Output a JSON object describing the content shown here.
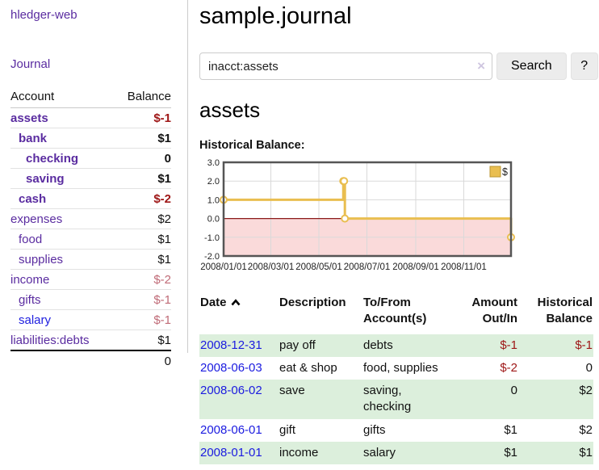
{
  "app": {
    "title": "hledger-web"
  },
  "sidebar": {
    "journal_link": "Journal",
    "accounts_table": {
      "headers": {
        "account": "Account",
        "balance": "Balance"
      },
      "rows": [
        {
          "name": "assets",
          "balance": "$-1",
          "level": 1,
          "bold": true,
          "name_color": "purple",
          "balance_style": "neg"
        },
        {
          "name": "bank",
          "balance": "$1",
          "level": 2,
          "bold": true,
          "name_color": "purple",
          "balance_style": "pos"
        },
        {
          "name": "checking",
          "balance": "0",
          "level": 3,
          "bold": true,
          "name_color": "purple",
          "balance_style": "pos"
        },
        {
          "name": "saving",
          "balance": "$1",
          "level": 3,
          "bold": true,
          "name_color": "purple",
          "balance_style": "pos"
        },
        {
          "name": "cash",
          "balance": "$-2",
          "level": 2,
          "bold": true,
          "name_color": "purple",
          "balance_style": "neg"
        },
        {
          "name": "expenses",
          "balance": "$2",
          "level": 1,
          "bold": false,
          "name_color": "purple",
          "balance_style": "pos"
        },
        {
          "name": "food",
          "balance": "$1",
          "level": 2,
          "bold": false,
          "name_color": "purple",
          "balance_style": "pos"
        },
        {
          "name": "supplies",
          "balance": "$1",
          "level": 2,
          "bold": false,
          "name_color": "purple",
          "balance_style": "pos"
        },
        {
          "name": "income",
          "balance": "$-2",
          "level": 1,
          "bold": false,
          "name_color": "purple",
          "balance_style": "negmuted"
        },
        {
          "name": "gifts",
          "balance": "$-1",
          "level": 2,
          "bold": false,
          "name_color": "purple",
          "balance_style": "negmuted"
        },
        {
          "name": "salary",
          "balance": "$-1",
          "level": 2,
          "bold": false,
          "name_color": "blue",
          "balance_style": "negmuted"
        },
        {
          "name": "liabilities:debts",
          "balance": "$1",
          "level": 1,
          "bold": false,
          "name_color": "purple",
          "balance_style": "pos"
        }
      ],
      "total": "0"
    }
  },
  "header": {
    "title": "sample.journal"
  },
  "search": {
    "value": "inacct:assets",
    "clear_icon": "×",
    "button_label": "Search",
    "help_label": "?"
  },
  "main": {
    "account_title": "assets",
    "chart_label": "Historical Balance:"
  },
  "chart_data": {
    "type": "line",
    "line_style": "step",
    "title": "Historical Balance",
    "legend": {
      "label": "$",
      "position": "top-right"
    },
    "ylim": [
      -2,
      3
    ],
    "y_ticks": [
      3.0,
      2.0,
      1.0,
      0.0,
      -1.0,
      -2.0
    ],
    "y_tick_labels": [
      "3.0",
      "2.0",
      "1.0",
      "0.0",
      "-1.0",
      "-2.0"
    ],
    "x_range": [
      "2008-01-01",
      "2008-12-31"
    ],
    "x_ticks": [
      {
        "date": "2008-01-01",
        "label": "2008/01/01"
      },
      {
        "date": "2008-03-01",
        "label": "2008/03/01"
      },
      {
        "date": "2008-05-01",
        "label": "2008/05/01"
      },
      {
        "date": "2008-07-01",
        "label": "2008/07/01"
      },
      {
        "date": "2008-09-01",
        "label": "2008/09/01"
      },
      {
        "date": "2008-11-01",
        "label": "2008/11/01"
      }
    ],
    "series": [
      {
        "name": "$",
        "points": [
          {
            "date": "2008-01-01",
            "value": 1
          },
          {
            "date": "2008-06-01",
            "value": 2
          },
          {
            "date": "2008-06-02",
            "value": 2
          },
          {
            "date": "2008-06-03",
            "value": 0
          },
          {
            "date": "2008-12-31",
            "value": -1
          }
        ]
      }
    ],
    "colors": {
      "line": "#e9be50",
      "marker_fill": "#ffffff",
      "legend_border": "#bb9632",
      "negative_fill": "#fadada",
      "zero_line": "#8b1a1a",
      "grid": "#d9d9d9",
      "border": "#555555"
    }
  },
  "register": {
    "sort": {
      "column": "date",
      "direction": "asc",
      "icon": "chevron-up"
    },
    "headers": {
      "date": "Date",
      "description": "Description",
      "accounts": "To/From Account(s)",
      "amount": "Amount Out/In",
      "balance": "Historical Balance"
    },
    "rows": [
      {
        "date": "2008-12-31",
        "description": "pay off",
        "accounts": "debts",
        "amount": "$-1",
        "balance": "$-1"
      },
      {
        "date": "2008-06-03",
        "description": "eat & shop",
        "accounts": "food, supplies",
        "amount": "$-2",
        "balance": "0"
      },
      {
        "date": "2008-06-02",
        "description": "save",
        "accounts": "saving, checking",
        "amount": "0",
        "balance": "$2"
      },
      {
        "date": "2008-06-01",
        "description": "gift",
        "accounts": "gifts",
        "amount": "$1",
        "balance": "$2"
      },
      {
        "date": "2008-01-01",
        "description": "income",
        "accounts": "salary",
        "amount": "$1",
        "balance": "$1"
      }
    ]
  }
}
